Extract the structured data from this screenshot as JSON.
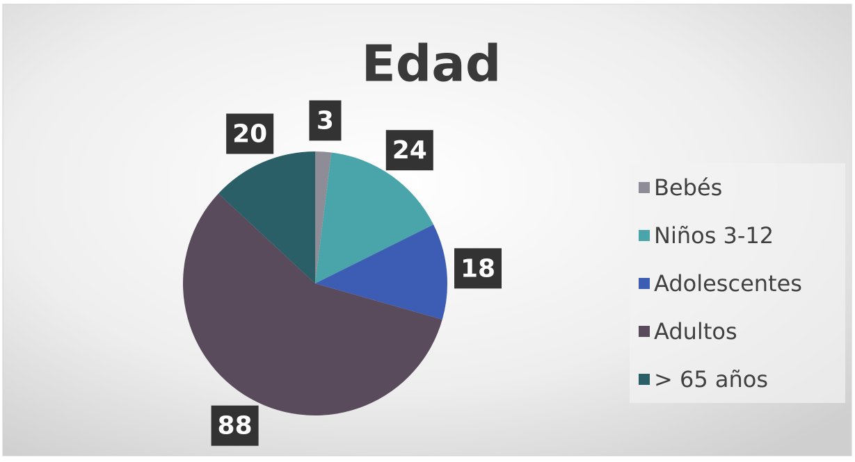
{
  "chart_data": {
    "type": "pie",
    "title": "Edad",
    "categories": [
      "Bebés",
      "Niños 3-12",
      "Adolescentes",
      "Adultos",
      "> 65 años"
    ],
    "values": [
      3,
      24,
      18,
      88,
      20
    ],
    "colors": [
      "#8e8c96",
      "#4aa5ab",
      "#3d5db5",
      "#5a4b5c",
      "#2b5f67"
    ],
    "legend": "right"
  }
}
